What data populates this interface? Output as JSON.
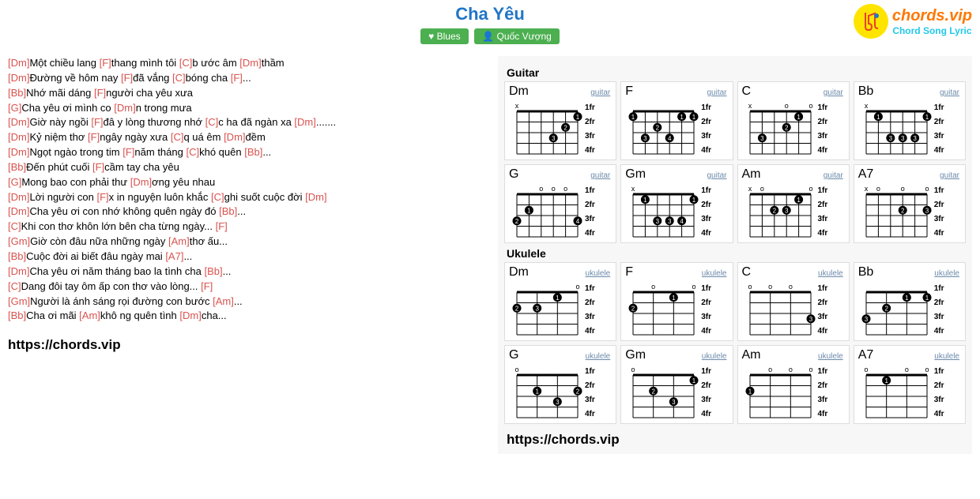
{
  "header": {
    "title": "Cha Yêu",
    "tag1": "♥ Blues",
    "tag2": "👤 Quốc Vượng",
    "logo_main": "chords.vip",
    "logo_sub": "Chord Song Lyric"
  },
  "lyrics": [
    [
      {
        "c": "Dm",
        "t": "Một chiều lang "
      },
      {
        "c": "F",
        "t": "thang mình tôi "
      },
      {
        "c": "C",
        "t": "b ước âm "
      },
      {
        "c": "Dm",
        "t": "thầm"
      }
    ],
    [
      {
        "c": "Dm",
        "t": "Đường về hôm nay "
      },
      {
        "c": "F",
        "t": "đã vắng "
      },
      {
        "c": "C",
        "t": "bóng cha "
      },
      {
        "c": "F",
        "t": "..."
      }
    ],
    [
      {
        "c": "Bb",
        "t": "Nhớ mãi dáng "
      },
      {
        "c": "F",
        "t": "người cha yêu xưa"
      }
    ],
    [
      {
        "c": "G",
        "t": "Cha yêu ơi mình co "
      },
      {
        "c": "Dm",
        "t": "n trong mưa"
      }
    ],
    [
      {
        "c": "Dm",
        "t": "Giờ này ngồi "
      },
      {
        "c": "F",
        "t": "đâ y lòng thương nhớ "
      },
      {
        "c": "C",
        "t": "c ha đã ngàn xa "
      },
      {
        "c": "Dm",
        "t": "......."
      }
    ],
    [
      {
        "c": "Dm",
        "t": "Kỷ niệm thơ "
      },
      {
        "c": "F",
        "t": "ngây ngày xưa "
      },
      {
        "c": "C",
        "t": "q uá êm "
      },
      {
        "c": "Dm",
        "t": "đềm"
      }
    ],
    [
      {
        "c": "Dm",
        "t": "Ngọt ngào trong tim "
      },
      {
        "c": "F",
        "t": "năm tháng "
      },
      {
        "c": "C",
        "t": "khó quên "
      },
      {
        "c": "Bb",
        "t": "..."
      }
    ],
    [
      {
        "c": "Bb",
        "t": "Đến phút cuối "
      },
      {
        "c": "F",
        "t": "cầm tay cha yêu"
      }
    ],
    [
      {
        "c": "G",
        "t": "Mong bao con phải thư "
      },
      {
        "c": "Dm",
        "t": "ơng yêu nhau"
      }
    ],
    [
      {
        "c": "Dm",
        "t": "Lời người con "
      },
      {
        "c": "F",
        "t": "x in nguyện luôn khắc "
      },
      {
        "c": "C",
        "t": "ghi suốt cuộc đời "
      },
      {
        "c": "Dm",
        "t": ""
      }
    ],
    [
      {
        "c": "Dm",
        "t": "Cha yêu ơi con nhớ không quên ngày đó "
      },
      {
        "c": "Bb",
        "t": "..."
      }
    ],
    [
      {
        "c": "C",
        "t": "Khi con thơ khôn lớn bên cha từng ngày... "
      },
      {
        "c": "F",
        "t": ""
      }
    ],
    [
      {
        "c": "Gm",
        "t": "Giờ còn đâu nữa những ngày "
      },
      {
        "c": "Am",
        "t": "thơ ấu..."
      }
    ],
    [
      {
        "c": "Bb",
        "t": "Cuộc đời ai biết đâu ngày mai "
      },
      {
        "c": "A7",
        "t": "..."
      }
    ],
    [
      {
        "c": "Dm",
        "t": "Cha yêu ơi năm tháng bao la tình cha "
      },
      {
        "c": "Bb",
        "t": "..."
      }
    ],
    [
      {
        "c": "C",
        "t": "Dang đôi tay ôm ấp con thơ vào lòng... "
      },
      {
        "c": "F",
        "t": ""
      }
    ],
    [
      {
        "c": "Gm",
        "t": "Người là ánh sáng rọi đường con bước "
      },
      {
        "c": "Am",
        "t": "..."
      }
    ],
    [
      {
        "c": "Bb",
        "t": "Cha ơi mãi "
      },
      {
        "c": "Am",
        "t": "khô ng quên tình "
      },
      {
        "c": "Dm",
        "t": "cha..."
      }
    ]
  ],
  "site_link": "https://chords.vip",
  "panel_link": "https://chords.vip",
  "guitar_label": "Guitar",
  "ukulele_label": "Ukulele",
  "fret_labels": [
    "1fr",
    "2fr",
    "3fr",
    "4fr"
  ],
  "guitar_chords": [
    {
      "name": "Dm",
      "inst": "guitar",
      "strings": 6,
      "top": "x-----",
      "dots": [
        {
          "s": 5,
          "f": 1,
          "n": "1"
        },
        {
          "s": 4,
          "f": 2,
          "n": "2"
        },
        {
          "s": 3,
          "f": 3,
          "n": "3"
        }
      ]
    },
    {
      "name": "F",
      "inst": "guitar",
      "strings": 6,
      "top": "------",
      "dots": [
        {
          "s": 0,
          "f": 1,
          "n": "1"
        },
        {
          "s": 5,
          "f": 1,
          "n": "1"
        },
        {
          "s": 4,
          "f": 1,
          "n": "1"
        },
        {
          "s": 2,
          "f": 2,
          "n": "2"
        },
        {
          "s": 1,
          "f": 3,
          "n": "3"
        },
        {
          "s": 3,
          "f": 3,
          "n": "4"
        }
      ]
    },
    {
      "name": "C",
      "inst": "guitar",
      "strings": 6,
      "top": "x--o-o",
      "dots": [
        {
          "s": 4,
          "f": 1,
          "n": "1"
        },
        {
          "s": 3,
          "f": 2,
          "n": "2"
        },
        {
          "s": 1,
          "f": 3,
          "n": "3"
        }
      ]
    },
    {
      "name": "Bb",
      "inst": "guitar",
      "strings": 6,
      "top": "x-----",
      "dots": [
        {
          "s": 1,
          "f": 1,
          "n": "1"
        },
        {
          "s": 5,
          "f": 1,
          "n": "1"
        },
        {
          "s": 2,
          "f": 3,
          "n": "3"
        },
        {
          "s": 3,
          "f": 3,
          "n": "3"
        },
        {
          "s": 4,
          "f": 3,
          "n": "3"
        }
      ]
    },
    {
      "name": "G",
      "inst": "guitar",
      "strings": 6,
      "top": "--ooo-",
      "dots": [
        {
          "s": 1,
          "f": 2,
          "n": "1"
        },
        {
          "s": 0,
          "f": 3,
          "n": "2"
        },
        {
          "s": 5,
          "f": 3,
          "n": "4"
        }
      ]
    },
    {
      "name": "Gm",
      "inst": "guitar",
      "strings": 6,
      "top": "x-----",
      "dots": [
        {
          "s": 1,
          "f": 1,
          "n": "1"
        },
        {
          "s": 5,
          "f": 1,
          "n": "1"
        },
        {
          "s": 2,
          "f": 3,
          "n": "3"
        },
        {
          "s": 3,
          "f": 3,
          "n": "3"
        },
        {
          "s": 4,
          "f": 3,
          "n": "4"
        }
      ]
    },
    {
      "name": "Am",
      "inst": "guitar",
      "strings": 6,
      "top": "xo---o",
      "dots": [
        {
          "s": 4,
          "f": 1,
          "n": "1"
        },
        {
          "s": 2,
          "f": 2,
          "n": "2"
        },
        {
          "s": 3,
          "f": 2,
          "n": "3"
        }
      ]
    },
    {
      "name": "A7",
      "inst": "guitar",
      "strings": 6,
      "top": "xo-o-o",
      "dots": [
        {
          "s": 3,
          "f": 2,
          "n": "2"
        },
        {
          "s": 5,
          "f": 2,
          "n": "3"
        }
      ]
    }
  ],
  "ukulele_chords": [
    {
      "name": "Dm",
      "inst": "ukulele",
      "strings": 4,
      "top": "---o",
      "dots": [
        {
          "s": 2,
          "f": 1,
          "n": "1"
        },
        {
          "s": 0,
          "f": 2,
          "n": "2"
        },
        {
          "s": 1,
          "f": 2,
          "n": "3"
        }
      ]
    },
    {
      "name": "F",
      "inst": "ukulele",
      "strings": 4,
      "top": "-o-o",
      "dots": [
        {
          "s": 2,
          "f": 1,
          "n": "1"
        },
        {
          "s": 0,
          "f": 2,
          "n": "2"
        }
      ]
    },
    {
      "name": "C",
      "inst": "ukulele",
      "strings": 4,
      "top": "ooo-",
      "dots": [
        {
          "s": 3,
          "f": 3,
          "n": "3"
        }
      ]
    },
    {
      "name": "Bb",
      "inst": "ukulele",
      "strings": 4,
      "top": "----",
      "dots": [
        {
          "s": 2,
          "f": 1,
          "n": "1"
        },
        {
          "s": 3,
          "f": 1,
          "n": "1"
        },
        {
          "s": 1,
          "f": 2,
          "n": "2"
        },
        {
          "s": 0,
          "f": 3,
          "n": "3"
        }
      ]
    },
    {
      "name": "G",
      "inst": "ukulele",
      "strings": 4,
      "top": "o---",
      "dots": [
        {
          "s": 1,
          "f": 2,
          "n": "1"
        },
        {
          "s": 3,
          "f": 2,
          "n": "2"
        },
        {
          "s": 2,
          "f": 3,
          "n": "3"
        }
      ]
    },
    {
      "name": "Gm",
      "inst": "ukulele",
      "strings": 4,
      "top": "o---",
      "dots": [
        {
          "s": 3,
          "f": 1,
          "n": "1"
        },
        {
          "s": 1,
          "f": 2,
          "n": "2"
        },
        {
          "s": 2,
          "f": 3,
          "n": "3"
        }
      ]
    },
    {
      "name": "Am",
      "inst": "ukulele",
      "strings": 4,
      "top": "-ooo",
      "dots": [
        {
          "s": 0,
          "f": 2,
          "n": "1"
        }
      ]
    },
    {
      "name": "A7",
      "inst": "ukulele",
      "strings": 4,
      "top": "o-oo",
      "dots": [
        {
          "s": 1,
          "f": 1,
          "n": "1"
        }
      ]
    }
  ],
  "colors": {
    "chord": "#d9534f",
    "title": "#2176c6",
    "tag_bg": "#4caf50",
    "logo_bg": "#ffe400",
    "logo_main": "#ff7700",
    "logo_sub": "#22c9e8"
  }
}
